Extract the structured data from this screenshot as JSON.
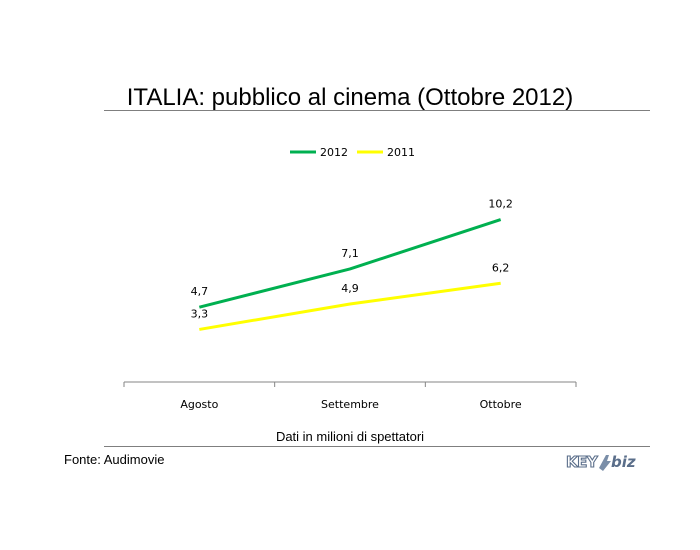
{
  "slide": {
    "title": "ITALIA: pubblico al cinema (Ottobre 2012)",
    "caption": "Dati in milioni di spettatori",
    "source": "Fonte: Audimovie",
    "logo_text": "KEY4biz"
  },
  "chart_data": {
    "type": "line",
    "categories": [
      "Agosto",
      "Settembre",
      "Ottobre"
    ],
    "series": [
      {
        "name": "2012",
        "values": [
          4.7,
          7.1,
          10.2
        ],
        "labels": [
          "4,7",
          "7,1",
          "10,2"
        ],
        "color": "#00b050"
      },
      {
        "name": "2011",
        "values": [
          3.3,
          4.9,
          6.2
        ],
        "labels": [
          "3,3",
          "4,9",
          "6,2"
        ],
        "color": "#ffff00"
      }
    ],
    "ylim": [
      0,
      13
    ],
    "grid": false,
    "legend_position": "top-center"
  }
}
